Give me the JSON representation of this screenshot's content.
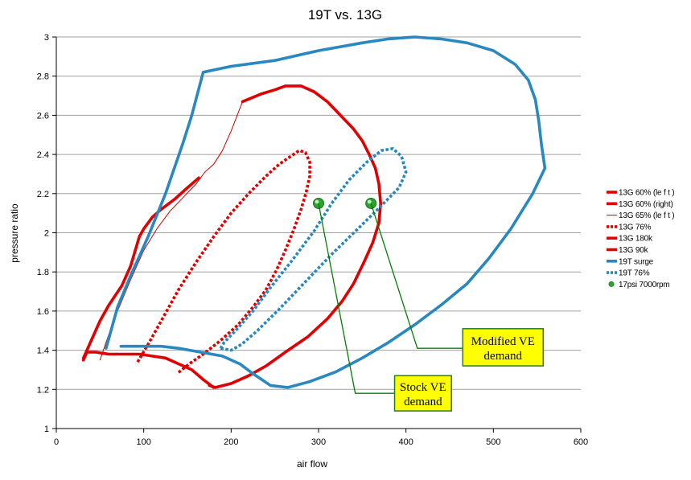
{
  "chart_data": {
    "type": "line",
    "title": "19T vs. 13G",
    "xlabel": "air flow",
    "ylabel": "pressure ratio",
    "xlim": [
      0,
      600
    ],
    "ylim": [
      1,
      3
    ],
    "x_ticks": [
      0,
      100,
      200,
      300,
      400,
      500,
      600
    ],
    "y_ticks": [
      1,
      1.2,
      1.4,
      1.6,
      1.8,
      2,
      2.2,
      2.4,
      2.6,
      2.8,
      3
    ],
    "y_tick_labels": [
      "1",
      "1.2",
      "1.4",
      "1.6",
      "1.8",
      "2",
      "2.2",
      "2.4",
      "2.6",
      "2.8",
      "3"
    ],
    "grid": "horizontal",
    "legend_position": "right",
    "series": [
      {
        "name": "13G 60% (le f t )",
        "color": "#e00000",
        "style": "solid-thick",
        "points": [
          [
            31,
            1.36
          ],
          [
            40,
            1.45
          ],
          [
            50,
            1.55
          ],
          [
            60,
            1.63
          ],
          [
            75,
            1.73
          ],
          [
            85,
            1.83
          ],
          [
            95,
            1.98
          ],
          [
            100,
            2.02
          ],
          [
            110,
            2.08
          ],
          [
            120,
            2.12
          ],
          [
            135,
            2.17
          ],
          [
            150,
            2.23
          ],
          [
            163,
            2.28
          ]
        ]
      },
      {
        "name": "13G 60% (right)",
        "color": "#e00000",
        "style": "solid-thick",
        "points": [
          [
            213,
            2.67
          ],
          [
            235,
            2.71
          ],
          [
            250,
            2.73
          ],
          [
            262,
            2.75
          ],
          [
            280,
            2.75
          ],
          [
            295,
            2.72
          ],
          [
            310,
            2.67
          ],
          [
            325,
            2.6
          ],
          [
            340,
            2.53
          ],
          [
            350,
            2.47
          ],
          [
            358,
            2.4
          ],
          [
            365,
            2.33
          ],
          [
            369,
            2.25
          ],
          [
            371,
            2.15
          ],
          [
            369,
            2.05
          ],
          [
            362,
            1.95
          ],
          [
            352,
            1.85
          ],
          [
            340,
            1.74
          ],
          [
            327,
            1.65
          ],
          [
            310,
            1.56
          ],
          [
            288,
            1.47
          ],
          [
            262,
            1.39
          ],
          [
            240,
            1.32
          ],
          [
            220,
            1.27
          ],
          [
            200,
            1.23
          ],
          [
            182,
            1.21
          ],
          [
            175,
            1.22
          ]
        ]
      },
      {
        "name": "13G 65% (le f t )",
        "color": "#cc0000",
        "style": "thin",
        "points": [
          [
            50,
            1.35
          ],
          [
            60,
            1.48
          ],
          [
            70,
            1.6
          ],
          [
            85,
            1.76
          ],
          [
            100,
            1.91
          ],
          [
            115,
            2.02
          ],
          [
            130,
            2.11
          ],
          [
            145,
            2.18
          ],
          [
            160,
            2.25
          ],
          [
            170,
            2.31
          ],
          [
            180,
            2.35
          ],
          [
            190,
            2.42
          ],
          [
            200,
            2.52
          ],
          [
            213,
            2.67
          ]
        ]
      },
      {
        "name": "13G 76%",
        "color": "#e00000",
        "style": "dotted-thick",
        "points": [
          [
            93,
            1.34
          ],
          [
            105,
            1.43
          ],
          [
            120,
            1.55
          ],
          [
            140,
            1.71
          ],
          [
            160,
            1.85
          ],
          [
            180,
            1.98
          ],
          [
            200,
            2.1
          ],
          [
            220,
            2.2
          ],
          [
            240,
            2.29
          ],
          [
            255,
            2.35
          ],
          [
            268,
            2.39
          ],
          [
            278,
            2.42
          ],
          [
            285,
            2.41
          ],
          [
            290,
            2.36
          ],
          [
            290,
            2.29
          ],
          [
            286,
            2.21
          ],
          [
            280,
            2.12
          ],
          [
            272,
            2.02
          ],
          [
            262,
            1.91
          ],
          [
            252,
            1.81
          ],
          [
            240,
            1.71
          ],
          [
            225,
            1.62
          ],
          [
            208,
            1.53
          ],
          [
            188,
            1.45
          ],
          [
            168,
            1.38
          ],
          [
            152,
            1.33
          ],
          [
            138,
            1.28
          ]
        ]
      },
      {
        "name": "13G 180k",
        "color": "#e00000",
        "style": "solid-thick",
        "points": [
          [
            35,
            1.39
          ],
          [
            45,
            1.39
          ],
          [
            60,
            1.38
          ],
          [
            80,
            1.38
          ],
          [
            95,
            1.38
          ],
          [
            110,
            1.37
          ],
          [
            125,
            1.36
          ],
          [
            140,
            1.33
          ],
          [
            155,
            1.3
          ],
          [
            168,
            1.25
          ],
          [
            180,
            1.21
          ]
        ]
      },
      {
        "name": "13G 90k",
        "color": "#e00000",
        "style": "solid-thick",
        "points": [
          [
            31,
            1.35
          ],
          [
            35,
            1.39
          ]
        ]
      },
      {
        "name": "19T surge",
        "color": "#2a88c0",
        "style": "solid-thick",
        "points": [
          [
            57,
            1.41
          ],
          [
            70,
            1.62
          ],
          [
            85,
            1.78
          ],
          [
            105,
            1.98
          ],
          [
            125,
            2.2
          ],
          [
            145,
            2.46
          ],
          [
            155,
            2.6
          ],
          [
            168,
            2.82
          ],
          [
            200,
            2.85
          ],
          [
            250,
            2.88
          ],
          [
            300,
            2.93
          ],
          [
            350,
            2.97
          ],
          [
            380,
            2.99
          ],
          [
            410,
            3.0
          ],
          [
            440,
            2.99
          ],
          [
            470,
            2.97
          ],
          [
            500,
            2.93
          ],
          [
            525,
            2.86
          ],
          [
            540,
            2.78
          ],
          [
            548,
            2.68
          ],
          [
            552,
            2.57
          ],
          [
            555,
            2.45
          ],
          [
            559,
            2.33
          ],
          [
            545,
            2.2
          ],
          [
            520,
            2.02
          ],
          [
            495,
            1.87
          ],
          [
            470,
            1.74
          ],
          [
            440,
            1.63
          ],
          [
            410,
            1.53
          ],
          [
            380,
            1.44
          ],
          [
            350,
            1.36
          ],
          [
            320,
            1.29
          ],
          [
            290,
            1.24
          ],
          [
            265,
            1.21
          ],
          [
            245,
            1.22
          ],
          [
            225,
            1.28
          ],
          [
            210,
            1.33
          ],
          [
            190,
            1.37
          ],
          [
            165,
            1.39
          ],
          [
            140,
            1.41
          ],
          [
            120,
            1.42
          ],
          [
            98,
            1.42
          ],
          [
            74,
            1.42
          ]
        ]
      },
      {
        "name": "19T 76%",
        "color": "#2a88c0",
        "style": "dotted-thick",
        "points": [
          [
            188,
            1.41
          ],
          [
            200,
            1.4
          ],
          [
            212,
            1.43
          ],
          [
            230,
            1.5
          ],
          [
            255,
            1.61
          ],
          [
            285,
            1.75
          ],
          [
            315,
            1.89
          ],
          [
            345,
            2.02
          ],
          [
            370,
            2.13
          ],
          [
            392,
            2.23
          ],
          [
            400,
            2.31
          ],
          [
            395,
            2.39
          ],
          [
            385,
            2.43
          ],
          [
            372,
            2.42
          ],
          [
            355,
            2.36
          ],
          [
            335,
            2.27
          ],
          [
            315,
            2.15
          ],
          [
            295,
            2.01
          ],
          [
            270,
            1.86
          ],
          [
            245,
            1.72
          ],
          [
            225,
            1.6
          ],
          [
            205,
            1.5
          ],
          [
            192,
            1.44
          ],
          [
            188,
            1.41
          ]
        ]
      },
      {
        "name": "17psi 7000rpm",
        "color": "#2e9e2e",
        "style": "marker",
        "points": [
          [
            300,
            2.15
          ],
          [
            360,
            2.15
          ]
        ]
      }
    ],
    "annotations": [
      {
        "lines": [
          "Modified VE",
          "demand"
        ],
        "point": [
          360,
          2.15
        ],
        "elbow": [
          413,
          1.41
        ],
        "box_x": [
          465,
          557
        ],
        "box_y": [
          1.32,
          1.51
        ]
      },
      {
        "lines": [
          "Stock VE",
          "demand"
        ],
        "point": [
          300,
          2.15
        ],
        "elbow": [
          342,
          1.18
        ],
        "box_x": [
          387,
          452
        ],
        "box_y": [
          1.09,
          1.27
        ]
      }
    ]
  }
}
